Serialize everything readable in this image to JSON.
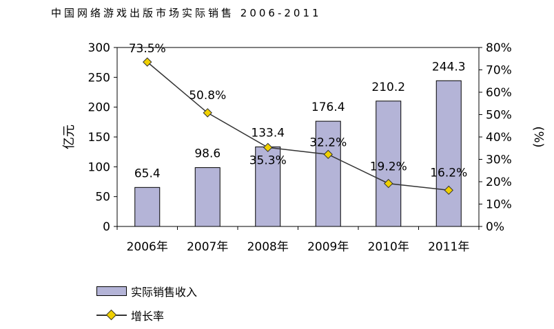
{
  "title": "中国网络游戏出版市场实际销售 2006-2011",
  "chart_data": {
    "type": "bar+line",
    "title": "中国网络游戏出版市场实际销售 2006-2011",
    "categories": [
      "2006年",
      "2007年",
      "2008年",
      "2009年",
      "2010年",
      "2011年"
    ],
    "series": [
      {
        "name": "实际销售收入",
        "type": "bar",
        "axis": "left",
        "values": [
          65.4,
          98.6,
          133.4,
          176.4,
          210.2,
          244.3
        ],
        "labels": [
          "65.4",
          "98.6",
          "133.4",
          "176.4",
          "210.2",
          "244.3"
        ],
        "color": "#b4b4d7"
      },
      {
        "name": "增长率",
        "type": "line",
        "axis": "right",
        "values": [
          73.5,
          50.8,
          35.3,
          32.2,
          19.2,
          16.2
        ],
        "labels": [
          "73.5%",
          "50.8%",
          "35.3%",
          "32.2%",
          "19.2%",
          "16.2%"
        ],
        "color": "#333333",
        "marker_color": "#f0d000"
      }
    ],
    "y_left": {
      "label": "亿元",
      "min": 0,
      "max": 300,
      "ticks": [
        "0",
        "50",
        "100",
        "150",
        "200",
        "250",
        "300"
      ]
    },
    "y_right": {
      "label": "(%)",
      "min": 0,
      "max": 80,
      "ticks": [
        "0%",
        "10%",
        "20%",
        "30%",
        "40%",
        "50%",
        "60%",
        "70%",
        "80%"
      ]
    },
    "legend": {
      "placement": "bottom-left"
    },
    "grid": false
  }
}
